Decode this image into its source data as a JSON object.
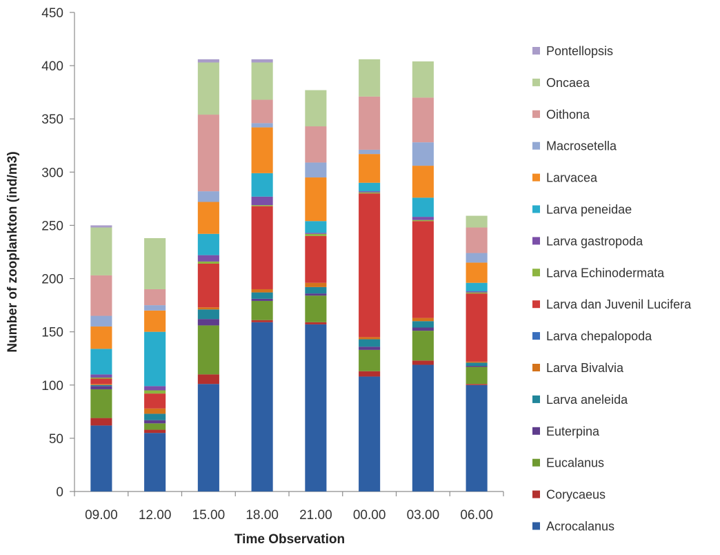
{
  "chart_data": {
    "type": "bar",
    "stacked": true,
    "title": "",
    "xlabel": "Time Observation",
    "ylabel": "Number of zooplankton (ind/m3)",
    "ylim": [
      0,
      450
    ],
    "yticks": [
      "0",
      "50",
      "100",
      "150",
      "200",
      "250",
      "300",
      "350",
      "400",
      "450"
    ],
    "gridlines": false,
    "legend_position": "right",
    "categories": [
      "09.00",
      "12.00",
      "15.00",
      "18.00",
      "21.00",
      "00.00",
      "03.00",
      "06.00"
    ],
    "series": [
      {
        "name": "Acrocalanus",
        "color": "#2E5FA3",
        "values": [
          62,
          55,
          101,
          159,
          157,
          108,
          119,
          100
        ]
      },
      {
        "name": "Corycaeus",
        "color": "#B3302E",
        "values": [
          7,
          3,
          9,
          2,
          2,
          5,
          4,
          1
        ]
      },
      {
        "name": "Eucalanus",
        "color": "#6F9A31",
        "values": [
          27,
          6,
          46,
          18,
          25,
          20,
          28,
          16
        ]
      },
      {
        "name": "Euterpina",
        "color": "#5E3C8C",
        "values": [
          3,
          3,
          6,
          2,
          2,
          3,
          3,
          1
        ]
      },
      {
        "name": "Larva aneleida",
        "color": "#21869A",
        "values": [
          1,
          6,
          9,
          6,
          6,
          7,
          6,
          3
        ]
      },
      {
        "name": "Larva Bivalvia",
        "color": "#D4731B",
        "values": [
          1,
          5,
          2,
          3,
          4,
          2,
          3,
          1
        ]
      },
      {
        "name": "Larva chepalopoda",
        "color": "#3A6FBD",
        "values": [
          0,
          0,
          0,
          0,
          0,
          0,
          0,
          0
        ]
      },
      {
        "name": "Larva dan Juvenil Lucifera",
        "color": "#D03A38",
        "values": [
          5,
          14,
          41,
          78,
          44,
          135,
          91,
          64
        ]
      },
      {
        "name": "Larva Echinodermata",
        "color": "#8DB540",
        "values": [
          1,
          3,
          2,
          1,
          2,
          1,
          1,
          1
        ]
      },
      {
        "name": "Larva gastropoda",
        "color": "#7B4FA8",
        "values": [
          3,
          4,
          6,
          8,
          1,
          1,
          3,
          1
        ]
      },
      {
        "name": "Larva peneidae",
        "color": "#29ADCC",
        "values": [
          24,
          51,
          20,
          22,
          11,
          8,
          18,
          8
        ]
      },
      {
        "name": "Larvacea",
        "color": "#F38B23",
        "values": [
          21,
          20,
          30,
          43,
          41,
          27,
          30,
          19
        ]
      },
      {
        "name": "Macrosetella",
        "color": "#93A9D4",
        "values": [
          10,
          5,
          10,
          4,
          14,
          4,
          22,
          9
        ]
      },
      {
        "name": "Oithona",
        "color": "#D99999",
        "values": [
          38,
          15,
          72,
          22,
          34,
          50,
          42,
          24
        ]
      },
      {
        "name": "Oncaea",
        "color": "#B7CF98",
        "values": [
          45,
          48,
          49,
          35,
          34,
          35,
          34,
          11
        ]
      },
      {
        "name": "Pontellopsis",
        "color": "#A99CC9",
        "values": [
          2,
          0,
          3,
          3,
          0,
          0,
          0,
          0
        ]
      }
    ]
  }
}
